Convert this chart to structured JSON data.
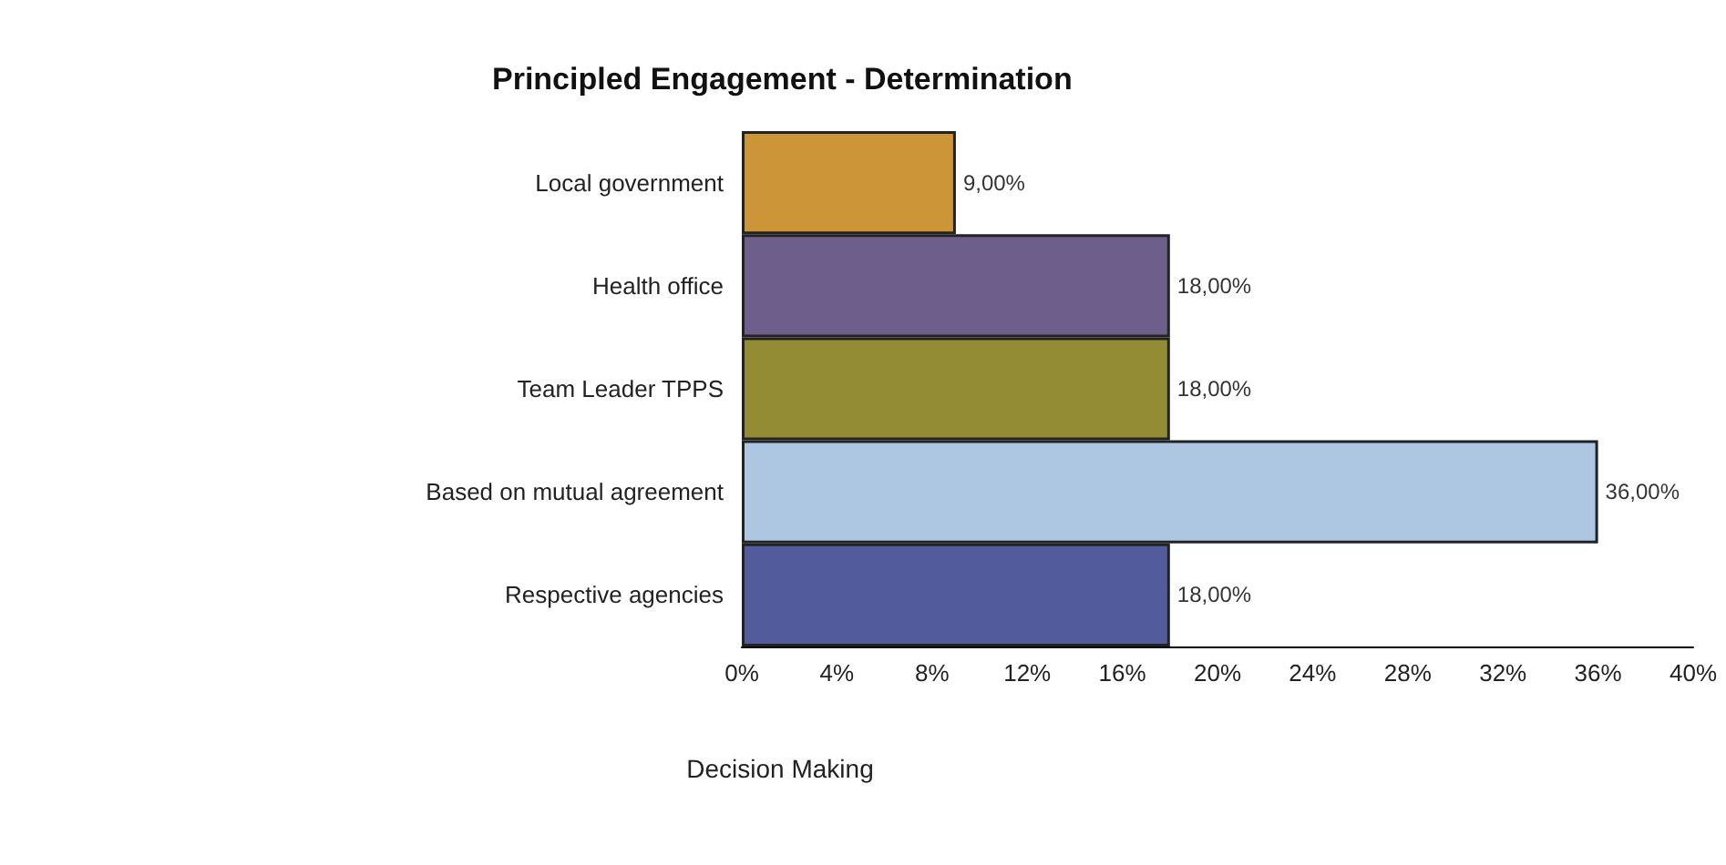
{
  "chart_data": {
    "type": "bar",
    "orientation": "horizontal",
    "title": "Principled Engagement - Determination",
    "xlabel": "Decision Making",
    "categories": [
      "Local government",
      "Health office",
      "Team Leader TPPS",
      "Based on mutual agreement",
      "Respective agencies"
    ],
    "values": [
      9,
      18,
      18,
      36,
      18
    ],
    "colors": [
      "#cc9537",
      "#6e5e8c",
      "#948c35",
      "#adc7e3",
      "#525c9c"
    ],
    "value_labels": [
      "9,00%",
      "18,00%",
      "18,00%",
      "36,00%",
      "18,00%"
    ],
    "xlim": [
      0,
      40
    ],
    "xticks": [
      {
        "value": 0,
        "label": "0%"
      },
      {
        "value": 4,
        "label": "4%"
      },
      {
        "value": 8,
        "label": "8%"
      },
      {
        "value": 12,
        "label": "12%"
      },
      {
        "value": 16,
        "label": "16%"
      },
      {
        "value": 20,
        "label": "20%"
      },
      {
        "value": 24,
        "label": "24%"
      },
      {
        "value": 28,
        "label": "28%"
      },
      {
        "value": 32,
        "label": "32%"
      },
      {
        "value": 36,
        "label": "36%"
      },
      {
        "value": 40,
        "label": "40%"
      }
    ],
    "grid": false
  }
}
